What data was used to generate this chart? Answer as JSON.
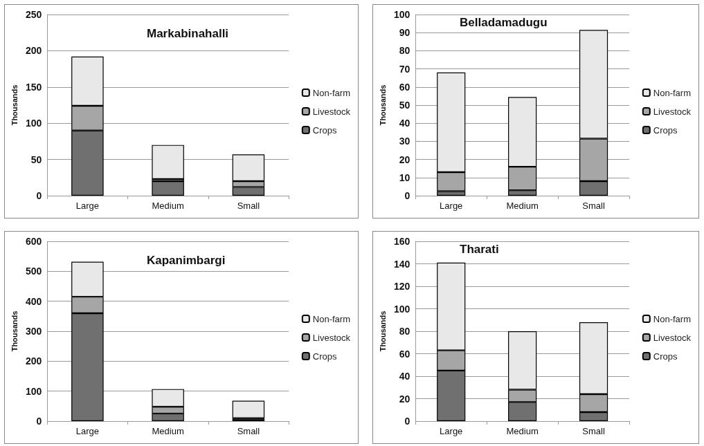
{
  "chart_data": [
    {
      "type": "bar",
      "title": "Markabinahalli",
      "ylabel": "Thousands",
      "categories": [
        "Large",
        "Medium",
        "Small"
      ],
      "stacked": true,
      "ylim": [
        0,
        250
      ],
      "yticks": [
        0,
        50,
        100,
        150,
        200,
        250
      ],
      "grid": "y",
      "legend": "right",
      "series": [
        {
          "name": "Crops",
          "color": "#707070",
          "values": [
            90,
            20,
            12
          ]
        },
        {
          "name": "Livestock",
          "color": "#a6a6a6",
          "values": [
            34,
            3,
            8
          ]
        },
        {
          "name": "Non-farm",
          "color": "#e8e8e8",
          "values": [
            68,
            47,
            37
          ]
        }
      ]
    },
    {
      "type": "bar",
      "title": "Belladamadugu",
      "ylabel": "Thousands",
      "categories": [
        "Large",
        "Medium",
        "Small"
      ],
      "stacked": true,
      "ylim": [
        0,
        100
      ],
      "yticks": [
        0,
        10,
        20,
        30,
        40,
        50,
        60,
        70,
        80,
        90,
        100
      ],
      "grid": "y",
      "legend": "right",
      "series": [
        {
          "name": "Crops",
          "color": "#707070",
          "values": [
            2.5,
            3,
            8
          ]
        },
        {
          "name": "Livestock",
          "color": "#a6a6a6",
          "values": [
            10.5,
            13,
            23.5
          ]
        },
        {
          "name": "Non-farm",
          "color": "#e8e8e8",
          "values": [
            55,
            38.5,
            60
          ]
        }
      ]
    },
    {
      "type": "bar",
      "title": "Kapanimbargi",
      "ylabel": "Thousands",
      "categories": [
        "Large",
        "Medium",
        "Small"
      ],
      "stacked": true,
      "ylim": [
        0,
        600
      ],
      "yticks": [
        0,
        100,
        200,
        300,
        400,
        500,
        600
      ],
      "grid": "y",
      "legend": "right",
      "series": [
        {
          "name": "Crops",
          "color": "#707070",
          "values": [
            360,
            25,
            5
          ]
        },
        {
          "name": "Livestock",
          "color": "#a6a6a6",
          "values": [
            55,
            23,
            5
          ]
        },
        {
          "name": "Non-farm",
          "color": "#e8e8e8",
          "values": [
            117,
            59,
            58
          ]
        }
      ]
    },
    {
      "type": "bar",
      "title": "Tharati",
      "ylabel": "Thousands",
      "categories": [
        "Large",
        "Medium",
        "Small"
      ],
      "stacked": true,
      "ylim": [
        0,
        160
      ],
      "yticks": [
        0,
        20,
        40,
        60,
        80,
        100,
        120,
        140,
        160
      ],
      "grid": "y",
      "legend": "right",
      "series": [
        {
          "name": "Crops",
          "color": "#707070",
          "values": [
            45,
            17,
            8
          ]
        },
        {
          "name": "Livestock",
          "color": "#a6a6a6",
          "values": [
            18,
            11,
            16
          ]
        },
        {
          "name": "Non-farm",
          "color": "#e8e8e8",
          "values": [
            78,
            52,
            64
          ]
        }
      ]
    }
  ]
}
